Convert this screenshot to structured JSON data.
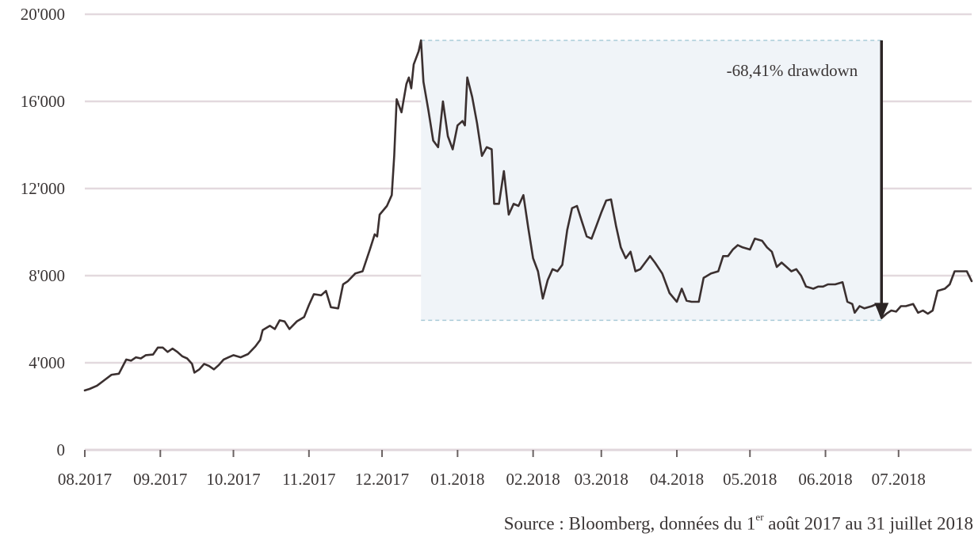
{
  "chart_data": {
    "type": "line",
    "title": "",
    "xlabel": "",
    "ylabel": "",
    "ylim": [
      0,
      20000
    ],
    "xlim": [
      "2017-08-01",
      "2018-07-31"
    ],
    "grid": "horizontal",
    "y_ticks": [
      0,
      4000,
      8000,
      12000,
      16000,
      20000
    ],
    "y_tick_labels": [
      "0",
      "4'000",
      "8'000",
      "12'000",
      "16'000",
      "20'000"
    ],
    "x_ticks": [
      "2017-08-01",
      "2017-09-01",
      "2017-10-01",
      "2017-11-01",
      "2017-12-01",
      "2018-01-01",
      "2018-02-01",
      "2018-03-01",
      "2018-04-01",
      "2018-05-01",
      "2018-06-01",
      "2018-07-01"
    ],
    "x_tick_labels": [
      "08.2017",
      "09.2017",
      "10.2017",
      "11.2017",
      "12.2017",
      "01.2018",
      "02.2018",
      "03.2018",
      "04.2018",
      "05.2018",
      "06.2018",
      "07.2018"
    ],
    "line_color": "#3b3030",
    "grid_color": "#e3d9de",
    "drawdown_box": {
      "start_date": "2017-12-17",
      "end_date": "2018-06-24",
      "high": 18800,
      "low": 5950,
      "fill": "#f0f4f8",
      "border": "#a9cbd8"
    },
    "annotation": {
      "text": "-68,41% drawdown",
      "date": "2018-06-24",
      "from_value": 18800,
      "to_value": 5950
    },
    "source": {
      "prefix": "Source : Bloomberg, données du 1",
      "superscript": "er",
      "suffix": " août 2017 au 31 juillet 2018"
    },
    "series": [
      {
        "points": [
          [
            "2017-08-01",
            2730
          ],
          [
            "2017-08-03",
            2800
          ],
          [
            "2017-08-06",
            2950
          ],
          [
            "2017-08-09",
            3200
          ],
          [
            "2017-08-12",
            3450
          ],
          [
            "2017-08-15",
            3500
          ],
          [
            "2017-08-18",
            4150
          ],
          [
            "2017-08-20",
            4100
          ],
          [
            "2017-08-22",
            4250
          ],
          [
            "2017-08-24",
            4200
          ],
          [
            "2017-08-26",
            4350
          ],
          [
            "2017-08-29",
            4380
          ],
          [
            "2017-08-31",
            4700
          ],
          [
            "2017-09-02",
            4700
          ],
          [
            "2017-09-04",
            4500
          ],
          [
            "2017-09-06",
            4650
          ],
          [
            "2017-09-08",
            4500
          ],
          [
            "2017-09-10",
            4300
          ],
          [
            "2017-09-12",
            4200
          ],
          [
            "2017-09-14",
            3950
          ],
          [
            "2017-09-15",
            3550
          ],
          [
            "2017-09-17",
            3700
          ],
          [
            "2017-09-19",
            3950
          ],
          [
            "2017-09-21",
            3850
          ],
          [
            "2017-09-23",
            3700
          ],
          [
            "2017-09-25",
            3900
          ],
          [
            "2017-09-27",
            4150
          ],
          [
            "2017-09-29",
            4250
          ],
          [
            "2017-10-01",
            4350
          ],
          [
            "2017-10-04",
            4250
          ],
          [
            "2017-10-07",
            4400
          ],
          [
            "2017-10-10",
            4750
          ],
          [
            "2017-10-12",
            5050
          ],
          [
            "2017-10-13",
            5500
          ],
          [
            "2017-10-16",
            5700
          ],
          [
            "2017-10-18",
            5550
          ],
          [
            "2017-10-20",
            5950
          ],
          [
            "2017-10-22",
            5900
          ],
          [
            "2017-10-24",
            5550
          ],
          [
            "2017-10-27",
            5900
          ],
          [
            "2017-10-30",
            6100
          ],
          [
            "2017-11-01",
            6650
          ],
          [
            "2017-11-03",
            7150
          ],
          [
            "2017-11-06",
            7100
          ],
          [
            "2017-11-08",
            7300
          ],
          [
            "2017-11-10",
            6550
          ],
          [
            "2017-11-13",
            6500
          ],
          [
            "2017-11-15",
            7600
          ],
          [
            "2017-11-17",
            7750
          ],
          [
            "2017-11-20",
            8100
          ],
          [
            "2017-11-23",
            8200
          ],
          [
            "2017-11-26",
            9200
          ],
          [
            "2017-11-28",
            9900
          ],
          [
            "2017-11-29",
            9800
          ],
          [
            "2017-11-30",
            10800
          ],
          [
            "2017-12-03",
            11200
          ],
          [
            "2017-12-05",
            11700
          ],
          [
            "2017-12-06",
            13500
          ],
          [
            "2017-12-07",
            16100
          ],
          [
            "2017-12-09",
            15500
          ],
          [
            "2017-12-11",
            16800
          ],
          [
            "2017-12-12",
            17100
          ],
          [
            "2017-12-13",
            16600
          ],
          [
            "2017-12-14",
            17700
          ],
          [
            "2017-12-16",
            18300
          ],
          [
            "2017-12-17",
            18800
          ],
          [
            "2017-12-18",
            16900
          ],
          [
            "2017-12-20",
            15600
          ],
          [
            "2017-12-22",
            14200
          ],
          [
            "2017-12-24",
            13900
          ],
          [
            "2017-12-26",
            16000
          ],
          [
            "2017-12-28",
            14400
          ],
          [
            "2017-12-30",
            13800
          ],
          [
            "2018-01-01",
            14900
          ],
          [
            "2018-01-03",
            15100
          ],
          [
            "2018-01-04",
            14900
          ],
          [
            "2018-01-05",
            17100
          ],
          [
            "2018-01-07",
            16200
          ],
          [
            "2018-01-09",
            15000
          ],
          [
            "2018-01-11",
            13500
          ],
          [
            "2018-01-13",
            13900
          ],
          [
            "2018-01-15",
            13800
          ],
          [
            "2018-01-16",
            11300
          ],
          [
            "2018-01-18",
            11300
          ],
          [
            "2018-01-20",
            12800
          ],
          [
            "2018-01-22",
            10800
          ],
          [
            "2018-01-24",
            11300
          ],
          [
            "2018-01-26",
            11200
          ],
          [
            "2018-01-28",
            11700
          ],
          [
            "2018-01-30",
            10200
          ],
          [
            "2018-02-01",
            8800
          ],
          [
            "2018-02-03",
            8200
          ],
          [
            "2018-02-05",
            6950
          ],
          [
            "2018-02-07",
            7800
          ],
          [
            "2018-02-09",
            8300
          ],
          [
            "2018-02-11",
            8200
          ],
          [
            "2018-02-13",
            8500
          ],
          [
            "2018-02-15",
            10100
          ],
          [
            "2018-02-17",
            11100
          ],
          [
            "2018-02-19",
            11200
          ],
          [
            "2018-02-21",
            10500
          ],
          [
            "2018-02-23",
            9800
          ],
          [
            "2018-02-25",
            9700
          ],
          [
            "2018-02-27",
            10300
          ],
          [
            "2018-03-01",
            10900
          ],
          [
            "2018-03-03",
            11450
          ],
          [
            "2018-03-05",
            11500
          ],
          [
            "2018-03-07",
            10300
          ],
          [
            "2018-03-09",
            9300
          ],
          [
            "2018-03-11",
            8800
          ],
          [
            "2018-03-13",
            9100
          ],
          [
            "2018-03-15",
            8200
          ],
          [
            "2018-03-17",
            8300
          ],
          [
            "2018-03-19",
            8600
          ],
          [
            "2018-03-21",
            8900
          ],
          [
            "2018-03-23",
            8600
          ],
          [
            "2018-03-26",
            8100
          ],
          [
            "2018-03-29",
            7200
          ],
          [
            "2018-04-01",
            6800
          ],
          [
            "2018-04-03",
            7400
          ],
          [
            "2018-04-05",
            6850
          ],
          [
            "2018-04-07",
            6800
          ],
          [
            "2018-04-10",
            6800
          ],
          [
            "2018-04-12",
            7900
          ],
          [
            "2018-04-15",
            8100
          ],
          [
            "2018-04-18",
            8200
          ],
          [
            "2018-04-20",
            8900
          ],
          [
            "2018-04-22",
            8900
          ],
          [
            "2018-04-24",
            9200
          ],
          [
            "2018-04-26",
            9400
          ],
          [
            "2018-04-28",
            9300
          ],
          [
            "2018-05-01",
            9200
          ],
          [
            "2018-05-03",
            9700
          ],
          [
            "2018-05-06",
            9600
          ],
          [
            "2018-05-08",
            9300
          ],
          [
            "2018-05-10",
            9100
          ],
          [
            "2018-05-12",
            8400
          ],
          [
            "2018-05-14",
            8600
          ],
          [
            "2018-05-16",
            8400
          ],
          [
            "2018-05-18",
            8200
          ],
          [
            "2018-05-20",
            8300
          ],
          [
            "2018-05-22",
            8000
          ],
          [
            "2018-05-24",
            7500
          ],
          [
            "2018-05-27",
            7400
          ],
          [
            "2018-05-29",
            7500
          ],
          [
            "2018-05-31",
            7500
          ],
          [
            "2018-06-02",
            7600
          ],
          [
            "2018-06-05",
            7600
          ],
          [
            "2018-06-08",
            7700
          ],
          [
            "2018-06-10",
            6800
          ],
          [
            "2018-06-12",
            6700
          ],
          [
            "2018-06-13",
            6300
          ],
          [
            "2018-06-15",
            6600
          ],
          [
            "2018-06-17",
            6500
          ],
          [
            "2018-06-20",
            6600
          ],
          [
            "2018-06-22",
            6700
          ],
          [
            "2018-06-24",
            6050
          ],
          [
            "2018-06-26",
            6250
          ],
          [
            "2018-06-28",
            6400
          ],
          [
            "2018-06-30",
            6350
          ],
          [
            "2018-07-02",
            6600
          ],
          [
            "2018-07-04",
            6600
          ],
          [
            "2018-07-07",
            6700
          ],
          [
            "2018-07-09",
            6300
          ],
          [
            "2018-07-11",
            6400
          ],
          [
            "2018-07-13",
            6250
          ],
          [
            "2018-07-15",
            6400
          ],
          [
            "2018-07-17",
            7300
          ],
          [
            "2018-07-20",
            7400
          ],
          [
            "2018-07-22",
            7600
          ],
          [
            "2018-07-24",
            8200
          ],
          [
            "2018-07-26",
            8200
          ],
          [
            "2018-07-29",
            8200
          ],
          [
            "2018-07-31",
            7750
          ]
        ]
      }
    ]
  }
}
